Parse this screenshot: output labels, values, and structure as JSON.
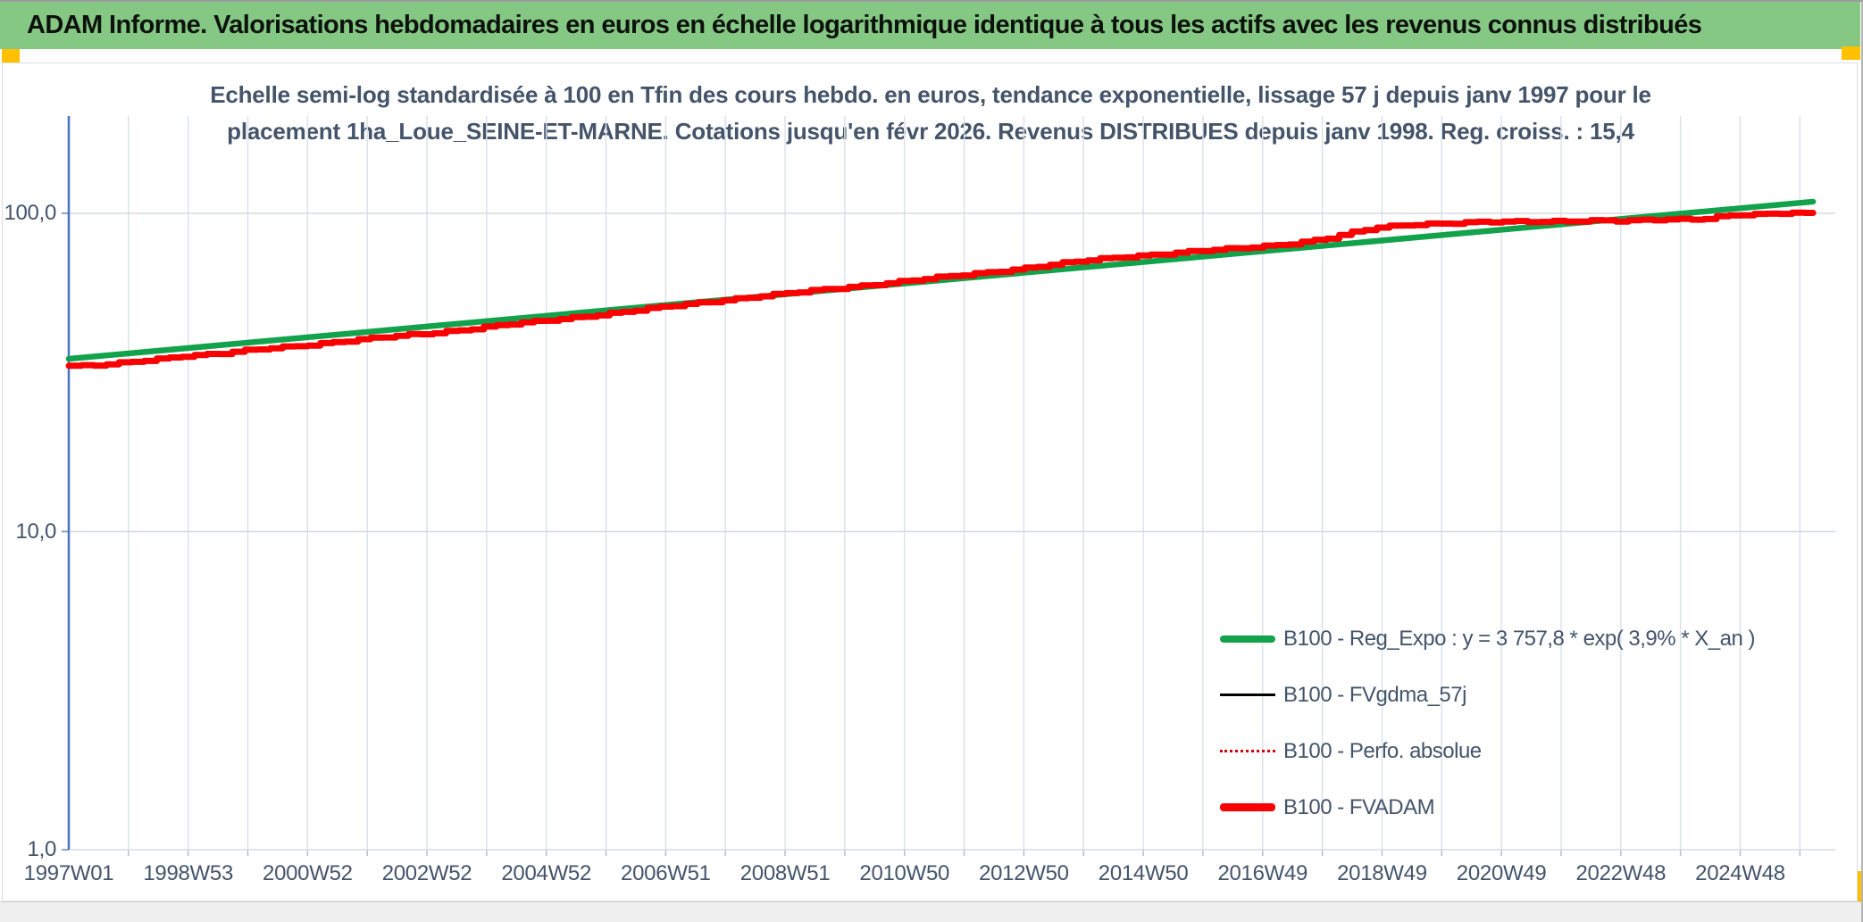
{
  "title_bar": {
    "text": "ADAM Informe. Valorisations hebdomadaires en euros en échelle logarithmique identique à tous les actifs avec les revenus connus distribués",
    "bg_color": "#85c884",
    "text_color": "#0d120d"
  },
  "markers": {
    "color": "#ffc000"
  },
  "chart_data": {
    "type": "line",
    "title_line1": "Echelle semi-log standardisée à 100 en Tfin des cours hebdo. en euros, tendance exponentielle, lissage 57 j depuis janv 1997 pour le",
    "title_line2": "placement 1ha_Loue_SEINE-ET-MARNE. Cotations jusqu'en févr 2026. Revenus DISTRIBUES depuis janv 1998. Reg. croiss. : 15,4",
    "x_axis": {
      "tick_labels": [
        "1997W01",
        "1998W53",
        "2000W52",
        "2002W52",
        "2004W52",
        "2006W51",
        "2008W51",
        "2010W50",
        "2012W50",
        "2014W50",
        "2016W49",
        "2018W49",
        "2020W49",
        "2022W48",
        "2024W48"
      ],
      "labels_every_weeks": 104,
      "gridlines_every_weeks": 52,
      "start_year": 1997.0,
      "end_year": 2026.12,
      "axis_color": "#4472c4"
    },
    "y_axis": {
      "scale": "log10",
      "tick_labels": [
        "100,0",
        "10,0",
        "1,0"
      ],
      "tick_values": [
        100,
        10,
        1
      ],
      "ylim": [
        1,
        200
      ],
      "grid_color": "#d9dfe8"
    },
    "grid": true,
    "legend_position": "inside-right-middle",
    "series": [
      {
        "name": "B100 - Reg_Expo : y = 3 757,8 * exp( 3,9% *  X_an )",
        "color": "#12a24b",
        "style": "solid-thick-green",
        "points": [
          [
            1997.0,
            34.9
          ],
          [
            2026.12,
            108.8
          ]
        ]
      },
      {
        "name": "B100 - FVgdma_57j",
        "color": "#000000",
        "style": "solid-thin",
        "coincides_with": "B100 - FVADAM"
      },
      {
        "name": "B100 - Perfo. absolue",
        "color": "#d40000",
        "style": "dotted-thin",
        "coincides_with": "B100 - FVADAM"
      },
      {
        "name": "B100 - FVADAM",
        "color": "#fa0000",
        "style": "solid-thick-red",
        "stepped": true,
        "points": [
          [
            1997.0,
            33.2
          ],
          [
            1997.4,
            33.1
          ],
          [
            1997.9,
            33.7
          ],
          [
            1998.4,
            34.6
          ],
          [
            1999.0,
            35.7
          ],
          [
            1999.6,
            36.2
          ],
          [
            2000.2,
            37.3
          ],
          [
            2000.8,
            38.2
          ],
          [
            2001.4,
            39.2
          ],
          [
            2002.0,
            40.2
          ],
          [
            2002.6,
            41.2
          ],
          [
            2003.2,
            42.2
          ],
          [
            2003.8,
            43.4
          ],
          [
            2004.4,
            44.7
          ],
          [
            2005.0,
            45.9
          ],
          [
            2005.6,
            47.3
          ],
          [
            2006.2,
            48.7
          ],
          [
            2006.8,
            50.2
          ],
          [
            2007.4,
            51.8
          ],
          [
            2008.0,
            53.4
          ],
          [
            2008.6,
            54.9
          ],
          [
            2009.2,
            56.3
          ],
          [
            2009.8,
            57.9
          ],
          [
            2010.4,
            59.5
          ],
          [
            2011.0,
            61.1
          ],
          [
            2011.6,
            62.8
          ],
          [
            2012.2,
            64.6
          ],
          [
            2012.8,
            66.5
          ],
          [
            2013.4,
            68.6
          ],
          [
            2014.0,
            70.8
          ],
          [
            2014.6,
            72.8
          ],
          [
            2015.2,
            74.3
          ],
          [
            2015.8,
            75.7
          ],
          [
            2016.4,
            77.1
          ],
          [
            2017.0,
            78.8
          ],
          [
            2017.6,
            80.9
          ],
          [
            2018.1,
            83.5
          ],
          [
            2018.5,
            86.8
          ],
          [
            2018.9,
            90.0
          ],
          [
            2019.3,
            91.8
          ],
          [
            2019.8,
            92.8
          ],
          [
            2020.4,
            93.4
          ],
          [
            2021.0,
            93.9
          ],
          [
            2021.6,
            94.3
          ],
          [
            2022.2,
            94.7
          ],
          [
            2022.7,
            94.9
          ],
          [
            2023.0,
            94.3
          ],
          [
            2023.4,
            95.1
          ],
          [
            2023.9,
            95.8
          ],
          [
            2024.4,
            96.4
          ],
          [
            2024.8,
            98.6
          ],
          [
            2025.3,
            99.0
          ],
          [
            2025.8,
            100.2
          ],
          [
            2026.1,
            100.0
          ]
        ]
      }
    ]
  }
}
